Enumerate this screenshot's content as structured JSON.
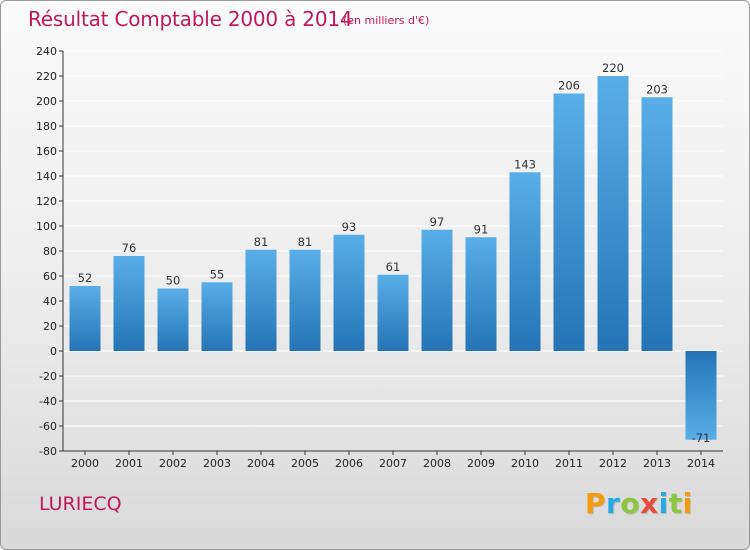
{
  "title": "Résultat Comptable 2000 à 2014",
  "subtitle": "(en milliers d'€)",
  "place": "LURIECQ",
  "logo": {
    "text": "Proxiti",
    "letters": [
      {
        "char": "P",
        "color": "#f39c12"
      },
      {
        "char": "r",
        "color": "#27a9e1"
      },
      {
        "char": "o",
        "color": "#8dc63f"
      },
      {
        "char": "x",
        "color": "#e74c3c"
      },
      {
        "char": "i",
        "color": "#27a9e1"
      },
      {
        "char": "t",
        "color": "#8dc63f"
      },
      {
        "char": "i",
        "color": "#f39c12"
      }
    ]
  },
  "colors": {
    "title": "#c2185b",
    "bar_top": "#5aaee8",
    "bar_bottom": "#2474b5",
    "grid": "#ffffff",
    "axis": "#333333"
  },
  "chart_data": {
    "type": "bar",
    "categories": [
      "2000",
      "2001",
      "2002",
      "2003",
      "2004",
      "2005",
      "2006",
      "2007",
      "2008",
      "2009",
      "2010",
      "2011",
      "2012",
      "2013",
      "2014"
    ],
    "values": [
      52,
      76,
      50,
      55,
      81,
      81,
      93,
      61,
      97,
      91,
      143,
      206,
      220,
      203,
      -71
    ],
    "value_labels": [
      "52",
      "76",
      "50",
      "55",
      "81",
      "81",
      "93",
      "61",
      "97",
      "91",
      "143",
      "206",
      "220",
      "203",
      "-71"
    ],
    "yticks": [
      -80,
      -60,
      -40,
      -20,
      0,
      20,
      40,
      60,
      80,
      100,
      120,
      140,
      160,
      180,
      200,
      220,
      240
    ],
    "ytick_labels": [
      "-80",
      "-60",
      "-40",
      "-20",
      "0",
      "20",
      "40",
      "60",
      "80",
      "100",
      "120",
      "140",
      "160",
      "180",
      "200",
      "220",
      "240"
    ],
    "ylim": [
      -80,
      240
    ],
    "grid": true,
    "legend": "none",
    "xlabel": "",
    "ylabel": ""
  }
}
